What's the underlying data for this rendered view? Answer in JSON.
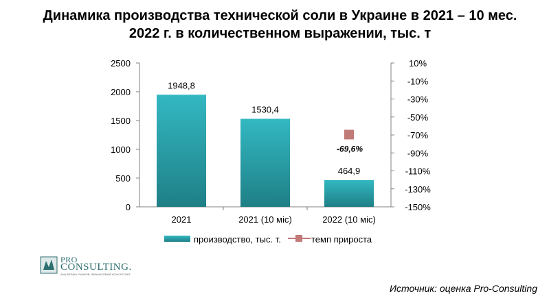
{
  "title_lines": [
    "Динамика производства технической соли в Украине в 2021 – 10 мес.",
    "2022 г. в количественном выражении, тыс. т"
  ],
  "chart_data": {
    "type": "bar",
    "categories": [
      "2021",
      "2021 (10 міс)",
      "2022 (10 міс)"
    ],
    "series": [
      {
        "name": "производство, тыс. т.",
        "kind": "bar",
        "axis": "left",
        "values": [
          1948.8,
          1530.4,
          464.9
        ],
        "labels": [
          "1948,8",
          "1530,4",
          "464,9"
        ],
        "color": "#2ba8b2"
      },
      {
        "name": "темп прироста",
        "kind": "marker",
        "axis": "right",
        "values": [
          null,
          null,
          -69.6
        ],
        "labels": [
          "",
          "",
          "-69,6%"
        ],
        "color": "#c07a78"
      }
    ],
    "y_left": {
      "min": 0,
      "max": 2500,
      "step": 500,
      "ticks": [
        "0",
        "500",
        "1000",
        "1500",
        "2000",
        "2500"
      ]
    },
    "y_right": {
      "min": -150,
      "max": 10,
      "step": 20,
      "ticks": [
        "-150%",
        "-130%",
        "-110%",
        "-90%",
        "-70%",
        "-50%",
        "-30%",
        "-10%",
        "10%"
      ]
    },
    "grid": false,
    "legend_position": "bottom"
  },
  "logo": {
    "line1": "PRO",
    "line2": "CONSULTING.",
    "tagline": "АНАЛИТИКА РЫНКОВ, ФИНАНСОВЫЙ КОНСАЛТИНГ"
  },
  "source": "Источник: оценка Pro-Consulting"
}
